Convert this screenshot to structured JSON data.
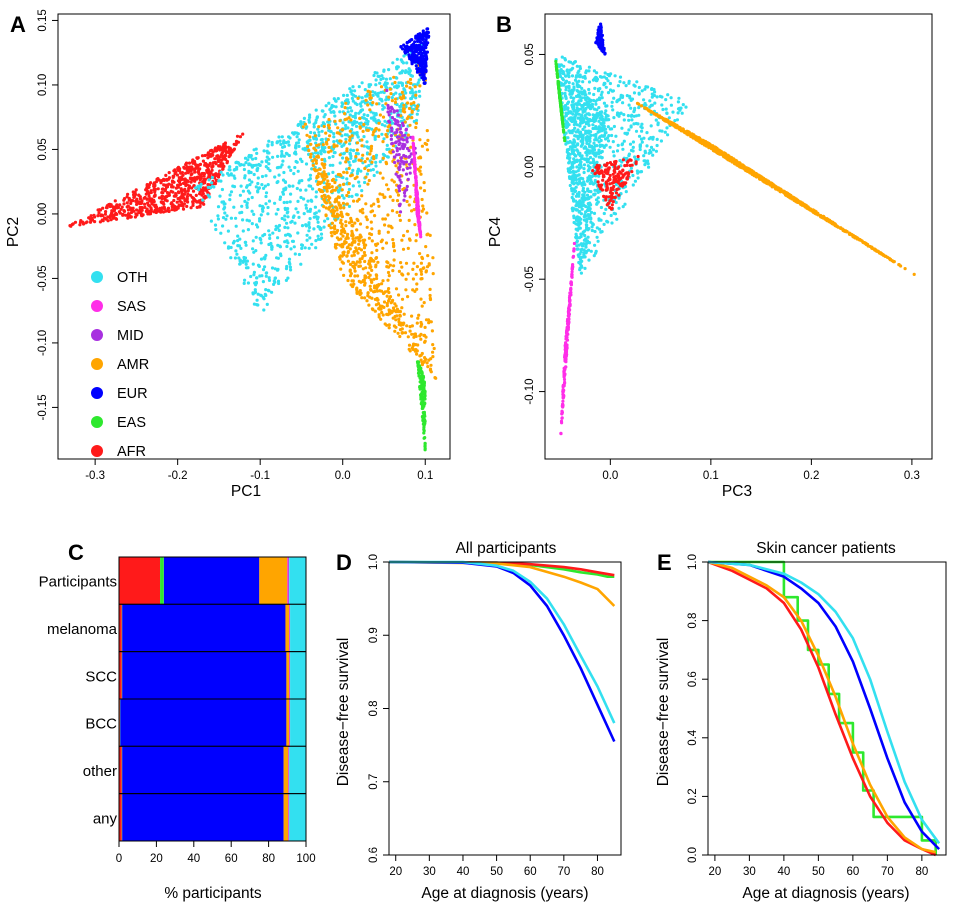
{
  "colors": {
    "OTH": "#33e0f0",
    "SAS": "#ff2ee8",
    "MID": "#a830e0",
    "AMR": "#ffa500",
    "EUR": "#0000ff",
    "EAS": "#2ee82e",
    "AFR": "#ff1a1a"
  },
  "chart_data": [
    {
      "panel": "A",
      "type": "scatter",
      "xlabel": "PC1",
      "ylabel": "PC2",
      "xlim": [
        -0.345,
        0.13
      ],
      "ylim": [
        -0.19,
        0.155
      ],
      "x_ticks": [
        "-0.3",
        "-0.2",
        "-0.1",
        "0.0",
        "0.1"
      ],
      "y_ticks": [
        "-0.15",
        "-0.10",
        "-0.05",
        "0.00",
        "0.05",
        "0.10",
        "0.15"
      ],
      "legend": [
        "OTH",
        "SAS",
        "MID",
        "AMR",
        "EUR",
        "EAS",
        "AFR"
      ],
      "legend_position": "bottom-left",
      "series": [
        {
          "name": "AFR",
          "region": [
            [
              -0.335,
              -0.01
            ],
            [
              -0.12,
              0.063
            ],
            [
              -0.17,
              0.005
            ]
          ]
        },
        {
          "name": "OTH",
          "region": [
            [
              -0.18,
              0.02
            ],
            [
              0.1,
              0.135
            ],
            [
              0.09,
              0.07
            ],
            [
              -0.1,
              -0.08
            ]
          ]
        },
        {
          "name": "AMR",
          "region": [
            [
              -0.05,
              0.07
            ],
            [
              0.1,
              0.12
            ],
            [
              0.115,
              -0.13
            ],
            [
              0.0,
              -0.05
            ]
          ]
        },
        {
          "name": "EUR",
          "region": [
            [
              0.07,
              0.13
            ],
            [
              0.105,
              0.145
            ],
            [
              0.1,
              0.1
            ]
          ]
        },
        {
          "name": "SAS",
          "region": [
            [
              0.085,
              0.06
            ],
            [
              0.095,
              -0.02
            ],
            [
              0.09,
              0.0
            ]
          ]
        },
        {
          "name": "MID",
          "region": [
            [
              0.05,
              0.1
            ],
            [
              0.07,
              0.0
            ],
            [
              0.09,
              0.05
            ]
          ]
        },
        {
          "name": "EAS",
          "region": [
            [
              0.09,
              -0.11
            ],
            [
              0.1,
              -0.185
            ],
            [
              0.1,
              -0.13
            ]
          ]
        }
      ]
    },
    {
      "panel": "B",
      "type": "scatter",
      "xlabel": "PC3",
      "ylabel": "PC4",
      "xlim": [
        -0.065,
        0.32
      ],
      "ylim": [
        -0.13,
        0.068
      ],
      "x_ticks": [
        "0.0",
        "0.1",
        "0.2",
        "0.3"
      ],
      "y_ticks": [
        "-0.10",
        "-0.05",
        "0.00",
        "0.05"
      ],
      "series": [
        {
          "name": "OTH",
          "region": [
            [
              -0.055,
              0.05
            ],
            [
              0.08,
              0.03
            ],
            [
              -0.03,
              -0.05
            ],
            [
              0.0,
              0.02
            ]
          ]
        },
        {
          "name": "AMR",
          "region": [
            [
              0.02,
              0.03
            ],
            [
              0.31,
              -0.05
            ],
            [
              0.1,
              0.01
            ]
          ]
        },
        {
          "name": "EAS",
          "region": [
            [
              -0.055,
              0.05
            ],
            [
              -0.045,
              0.01
            ],
            [
              -0.05,
              0.03
            ]
          ]
        },
        {
          "name": "EUR",
          "region": [
            [
              -0.01,
              0.065
            ],
            [
              -0.005,
              0.05
            ],
            [
              -0.015,
              0.055
            ]
          ]
        },
        {
          "name": "AFR",
          "region": [
            [
              -0.02,
              0.0
            ],
            [
              0.03,
              0.005
            ],
            [
              0.0,
              -0.02
            ]
          ]
        },
        {
          "name": "SAS",
          "region": [
            [
              -0.05,
              -0.125
            ],
            [
              -0.035,
              -0.03
            ],
            [
              -0.045,
              -0.08
            ]
          ]
        }
      ]
    },
    {
      "panel": "C",
      "type": "bar",
      "orientation": "horizontal",
      "stacked": true,
      "xlabel": "% participants",
      "xlim": [
        0,
        100
      ],
      "x_ticks": [
        "0",
        "20",
        "40",
        "60",
        "80",
        "100"
      ],
      "categories": [
        "Participants",
        "melanoma",
        "SCC",
        "BCC",
        "other",
        "any"
      ],
      "series": [
        {
          "name": "AFR",
          "values": [
            22,
            1.5,
            1.5,
            0.5,
            1.5,
            1.5
          ]
        },
        {
          "name": "EAS",
          "values": [
            2,
            0.2,
            0.2,
            0.2,
            0.2,
            0.2
          ]
        },
        {
          "name": "EUR",
          "values": [
            51,
            87.3,
            87.8,
            88.8,
            86.3,
            86.3
          ]
        },
        {
          "name": "AMR",
          "values": [
            15,
            2,
            1.5,
            1.5,
            2.5,
            2.5
          ]
        },
        {
          "name": "SAS",
          "values": [
            0.5,
            0.2,
            0.2,
            0.2,
            0.2,
            0.2
          ]
        },
        {
          "name": "MID",
          "values": [
            0.5,
            0.3,
            0.3,
            0.3,
            0.3,
            0.3
          ]
        },
        {
          "name": "OTH",
          "values": [
            9,
            8.5,
            8.5,
            8.5,
            9,
            9
          ]
        }
      ]
    },
    {
      "panel": "D",
      "type": "line",
      "title": "All participants",
      "xlabel": "Age at diagnosis (years)",
      "ylabel": "Disease−free survival",
      "xlim": [
        18,
        87
      ],
      "ylim": [
        0.6,
        1.0
      ],
      "x_ticks": [
        "20",
        "30",
        "40",
        "50",
        "60",
        "70",
        "80"
      ],
      "y_ticks": [
        "0.6",
        "0.7",
        "0.8",
        "0.9",
        "1.0"
      ],
      "series": [
        {
          "name": "OTH",
          "x": [
            18,
            40,
            50,
            55,
            60,
            65,
            70,
            75,
            80,
            85
          ],
          "y": [
            1.0,
            1.0,
            0.995,
            0.988,
            0.973,
            0.95,
            0.915,
            0.872,
            0.83,
            0.78
          ]
        },
        {
          "name": "EUR",
          "x": [
            18,
            40,
            50,
            55,
            60,
            65,
            70,
            75,
            80,
            85
          ],
          "y": [
            1.0,
            0.999,
            0.994,
            0.985,
            0.968,
            0.94,
            0.9,
            0.855,
            0.805,
            0.755
          ]
        },
        {
          "name": "AMR",
          "x": [
            18,
            50,
            60,
            70,
            75,
            80,
            85
          ],
          "y": [
            1.0,
            0.998,
            0.993,
            0.98,
            0.972,
            0.963,
            0.94
          ]
        },
        {
          "name": "EAS",
          "x": [
            18,
            50,
            60,
            70,
            75,
            80,
            83,
            85
          ],
          "y": [
            1.0,
            0.999,
            0.996,
            0.99,
            0.986,
            0.983,
            0.98,
            0.98
          ]
        },
        {
          "name": "AFR",
          "x": [
            18,
            50,
            60,
            70,
            75,
            80,
            85
          ],
          "y": [
            1.0,
            0.999,
            0.997,
            0.993,
            0.99,
            0.986,
            0.982
          ]
        }
      ]
    },
    {
      "panel": "E",
      "type": "line",
      "title": "Skin cancer patients",
      "xlabel": "Age at diagnosis (years)",
      "ylabel": "Disease−free survival",
      "xlim": [
        18,
        87
      ],
      "ylim": [
        0.0,
        1.0
      ],
      "x_ticks": [
        "20",
        "30",
        "40",
        "50",
        "60",
        "70",
        "80"
      ],
      "y_ticks": [
        "0.0",
        "0.2",
        "0.4",
        "0.6",
        "0.8",
        "1.0"
      ],
      "series": [
        {
          "name": "OTH",
          "x": [
            18,
            30,
            40,
            45,
            50,
            55,
            60,
            65,
            70,
            75,
            80,
            85
          ],
          "y": [
            1.0,
            0.99,
            0.96,
            0.93,
            0.89,
            0.83,
            0.74,
            0.6,
            0.42,
            0.25,
            0.12,
            0.04
          ]
        },
        {
          "name": "EUR",
          "x": [
            18,
            30,
            40,
            45,
            50,
            55,
            60,
            65,
            70,
            75,
            80,
            85
          ],
          "y": [
            1.0,
            0.99,
            0.95,
            0.91,
            0.86,
            0.78,
            0.66,
            0.5,
            0.33,
            0.18,
            0.08,
            0.02
          ]
        },
        {
          "name": "AMR",
          "x": [
            18,
            25,
            30,
            35,
            40,
            45,
            50,
            55,
            60,
            65,
            70,
            75,
            80,
            84
          ],
          "y": [
            1.0,
            0.98,
            0.95,
            0.92,
            0.88,
            0.8,
            0.68,
            0.54,
            0.38,
            0.24,
            0.13,
            0.06,
            0.02,
            0.01
          ]
        },
        {
          "name": "AFR",
          "x": [
            18,
            25,
            30,
            35,
            40,
            45,
            50,
            55,
            60,
            65,
            70,
            75,
            80,
            84
          ],
          "y": [
            1.0,
            0.97,
            0.94,
            0.91,
            0.86,
            0.77,
            0.64,
            0.48,
            0.33,
            0.2,
            0.11,
            0.05,
            0.02,
            0.0
          ]
        },
        {
          "name": "EAS",
          "x": [
            18,
            35,
            40,
            44,
            47,
            50,
            53,
            56,
            60,
            63,
            66,
            70,
            75,
            80,
            84
          ],
          "y": [
            1.0,
            1.0,
            0.88,
            0.8,
            0.7,
            0.65,
            0.55,
            0.45,
            0.35,
            0.22,
            0.13,
            0.13,
            0.13,
            0.05,
            0.0
          ]
        }
      ]
    }
  ]
}
